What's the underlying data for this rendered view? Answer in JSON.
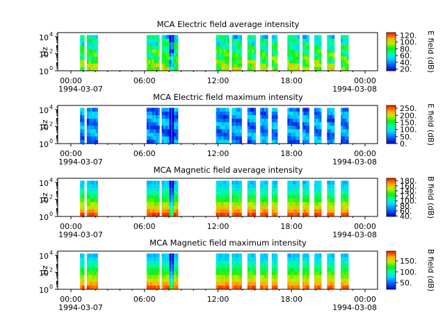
{
  "chart_data": [
    {
      "type": "heatmap",
      "title": "MCA  Electric field average intensity",
      "ylabel": "Hz",
      "yscale": "log",
      "ylim": [
        1,
        30000
      ],
      "yticks": [
        {
          "base": "10",
          "exp": "0"
        },
        {
          "base": "10",
          "exp": "2"
        },
        {
          "base": "10",
          "exp": "4"
        }
      ],
      "xlim": [
        "1994-03-07 00:00",
        "1994-03-08 00:00"
      ],
      "xticks": [
        "00:00",
        "06:00",
        "12:00",
        "18:00",
        "00:00"
      ],
      "xdates": [
        "1994-03-07",
        "1994-03-08"
      ],
      "colorbar": {
        "label": "E field (dB)",
        "range": [
          15,
          128
        ],
        "ticks": [
          "20.",
          "40.",
          "60.",
          "80.",
          "100.",
          "120."
        ]
      },
      "palette": "rainbow"
    },
    {
      "type": "heatmap",
      "title": "MCA  Electric field maximum intensity",
      "ylabel": "Hz",
      "yscale": "log",
      "ylim": [
        1,
        30000
      ],
      "yticks": [
        {
          "base": "10",
          "exp": "0"
        },
        {
          "base": "10",
          "exp": "2"
        },
        {
          "base": "10",
          "exp": "4"
        }
      ],
      "xlim": [
        "1994-03-07 00:00",
        "1994-03-08 00:00"
      ],
      "xticks": [
        "00:00",
        "06:00",
        "12:00",
        "18:00",
        "00:00"
      ],
      "xdates": [
        "1994-03-07",
        "1994-03-08"
      ],
      "colorbar": {
        "label": "E field (dB)",
        "range": [
          0,
          270
        ],
        "ticks": [
          "0.",
          "50.",
          "100.",
          "150.",
          "200.",
          "250."
        ]
      },
      "palette": "rainbow"
    },
    {
      "type": "heatmap",
      "title": "MCA  Magnetic field average intensity",
      "ylabel": "Hz",
      "yscale": "log",
      "ylim": [
        1,
        30000
      ],
      "yticks": [
        {
          "base": "10",
          "exp": "0"
        },
        {
          "base": "10",
          "exp": "2"
        },
        {
          "base": "10",
          "exp": "4"
        }
      ],
      "xlim": [
        "1994-03-07 00:00",
        "1994-03-08 00:00"
      ],
      "xticks": [
        "00:00",
        "06:00",
        "12:00",
        "18:00",
        "00:00"
      ],
      "xdates": [
        "1994-03-07",
        "1994-03-08"
      ],
      "colorbar": {
        "label": "B field (dB)",
        "range": [
          38,
          190
        ],
        "ticks": [
          "40.",
          "60.",
          "80.",
          "100.",
          "120.",
          "140.",
          "160.",
          "180."
        ]
      },
      "palette": "rainbow"
    },
    {
      "type": "heatmap",
      "title": "MCA  Magnetic field maximum intensity",
      "ylabel": "Hz",
      "yscale": "log",
      "ylim": [
        1,
        30000
      ],
      "yticks": [
        {
          "base": "10",
          "exp": "0"
        },
        {
          "base": "10",
          "exp": "2"
        },
        {
          "base": "10",
          "exp": "4"
        }
      ],
      "xlim": [
        "1994-03-07 00:00",
        "1994-03-08 00:00"
      ],
      "xticks": [
        "00:00",
        "06:00",
        "12:00",
        "18:00",
        "00:00"
      ],
      "xdates": [
        "1994-03-07",
        "1994-03-08"
      ],
      "colorbar": {
        "label": "B field (dB)",
        "range": [
          20,
          195
        ],
        "ticks": [
          "50.",
          "100.",
          "150."
        ]
      },
      "palette": "rainbow"
    }
  ]
}
